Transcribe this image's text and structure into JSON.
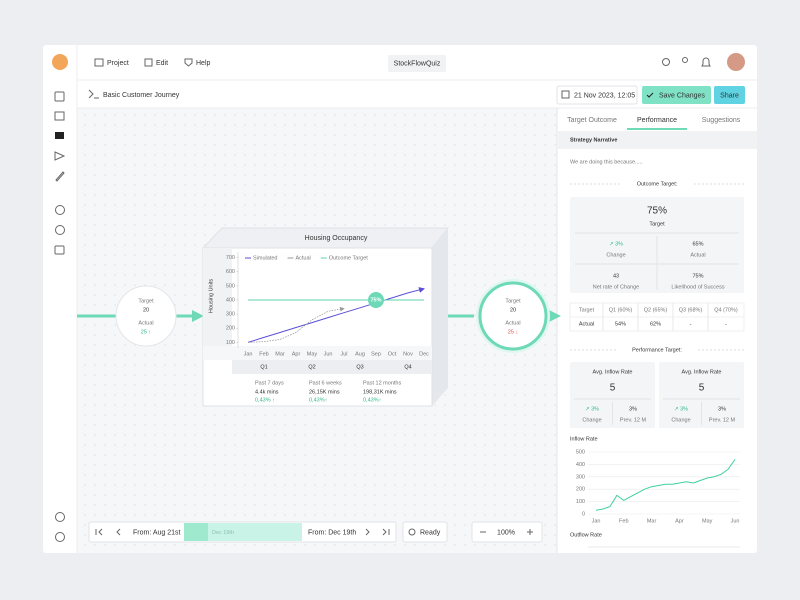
{
  "app": {
    "menu": [
      "Project",
      "Edit",
      "Help"
    ],
    "project_name": "StockFlowQuiz",
    "flow_name": "Basic Customer Journey",
    "timestamp": "21 Nov 2023, 12:05",
    "save": "Save Changes",
    "share": "Share"
  },
  "nodes": [
    {
      "target_label": "Target",
      "target": "20",
      "actual_label": "Actual",
      "actual": "25 ↑"
    },
    {
      "target_label": "Target",
      "target": "20",
      "actual_label": "Actual",
      "actual": "25 ↓"
    }
  ],
  "occupancy_stats": [
    {
      "label": "Past 7 days",
      "value": "4.4k mins",
      "change": "0,43% ↑"
    },
    {
      "label": "Past 6 weeks",
      "value": "26,15K mins",
      "change": "0,43%↑"
    },
    {
      "label": "Past 12 months",
      "value": "198,31K mins",
      "change": "0,43%↑"
    }
  ],
  "toolbar": {
    "from_start": "From: Aug 21st",
    "range_label": "Dec 19th",
    "from_end": "From: Dec 19th",
    "status": "Ready",
    "zoom": "100%"
  },
  "panel": {
    "tabs": [
      "Target Outcome",
      "Performance",
      "Suggestions"
    ],
    "narrative_title": "Strategy Narrative",
    "narrative": "We are doing this because.....",
    "outcome_heading": "Outcome Target:",
    "outcome": {
      "value": "75%",
      "label": "Target",
      "stats": [
        {
          "value": "↗ 3%",
          "label": "Change"
        },
        {
          "value": "65%",
          "label": "Actual"
        },
        {
          "value": "43",
          "label": "Net rate of Change"
        },
        {
          "value": "75%",
          "label": "Likelihood of Success"
        }
      ]
    },
    "quarter_table": {
      "rows": [
        [
          "Target",
          "Q1 (60%)",
          "Q2 (65%)",
          "Q3 (68%)",
          "Q4 (70%)"
        ],
        [
          "Actual",
          "54%",
          "62%",
          "-",
          "-"
        ]
      ]
    },
    "performance_heading": "Performance Target:",
    "performance_cards": [
      {
        "title": "Avg. Inflow Rate",
        "value": "5",
        "stats": [
          {
            "value": "↗ 3%",
            "label": "Change"
          },
          {
            "value": "3%",
            "label": "Prev. 12 M"
          }
        ]
      },
      {
        "title": "Avg. Inflow Rate",
        "value": "5",
        "stats": [
          {
            "value": "↗ 3%",
            "label": "Change"
          },
          {
            "value": "3%",
            "label": "Prev. 12 M"
          }
        ]
      }
    ],
    "outflow_title": "Outflow Rate"
  },
  "chart_data": [
    {
      "type": "line",
      "title": "Housing Occupancy",
      "ylabel": "Housing Units",
      "categories": [
        "Jan",
        "Feb",
        "Mar",
        "Apr",
        "May",
        "Jun",
        "Jul",
        "Aug",
        "Sep",
        "Oct",
        "Nov",
        "Dec"
      ],
      "quarters": [
        "Q1",
        "Q2",
        "Q3",
        "Q4"
      ],
      "series": [
        {
          "name": "Simulated",
          "color": "#5a4fd8",
          "values": [
            100,
            135,
            170,
            205,
            240,
            275,
            310,
            345,
            380,
            415,
            450,
            480
          ]
        },
        {
          "name": "Actual",
          "color": "#9a9a9a",
          "values": [
            100,
            105,
            120,
            170,
            260,
            320,
            340,
            null,
            null,
            null,
            null,
            null
          ]
        },
        {
          "name": "Outcome Target",
          "color": "#5fd3a8",
          "values": [
            400,
            400,
            400,
            400,
            400,
            400,
            400,
            400,
            400,
            400,
            400,
            400
          ]
        }
      ],
      "annotation": "75%",
      "ylim": [
        60,
        740
      ],
      "yticks": [
        100,
        200,
        300,
        400,
        500,
        600,
        700
      ],
      "grid": false
    },
    {
      "type": "line",
      "title": "Inflow Rate",
      "categories": [
        "Jan",
        null,
        null,
        null,
        "Feb",
        null,
        null,
        null,
        "Mar",
        null,
        null,
        null,
        "Apr",
        null,
        null,
        null,
        "May",
        null,
        null,
        null,
        "Jun"
      ],
      "series": [
        {
          "color": "#3fcf9d",
          "values": [
            30,
            40,
            60,
            150,
            110,
            140,
            170,
            200,
            220,
            230,
            240,
            240,
            250,
            260,
            250,
            270,
            290,
            300,
            320,
            360,
            440
          ]
        }
      ],
      "ylim": [
        0,
        500
      ],
      "yticks": [
        0,
        100,
        200,
        300,
        400,
        500
      ],
      "grid": true
    }
  ]
}
